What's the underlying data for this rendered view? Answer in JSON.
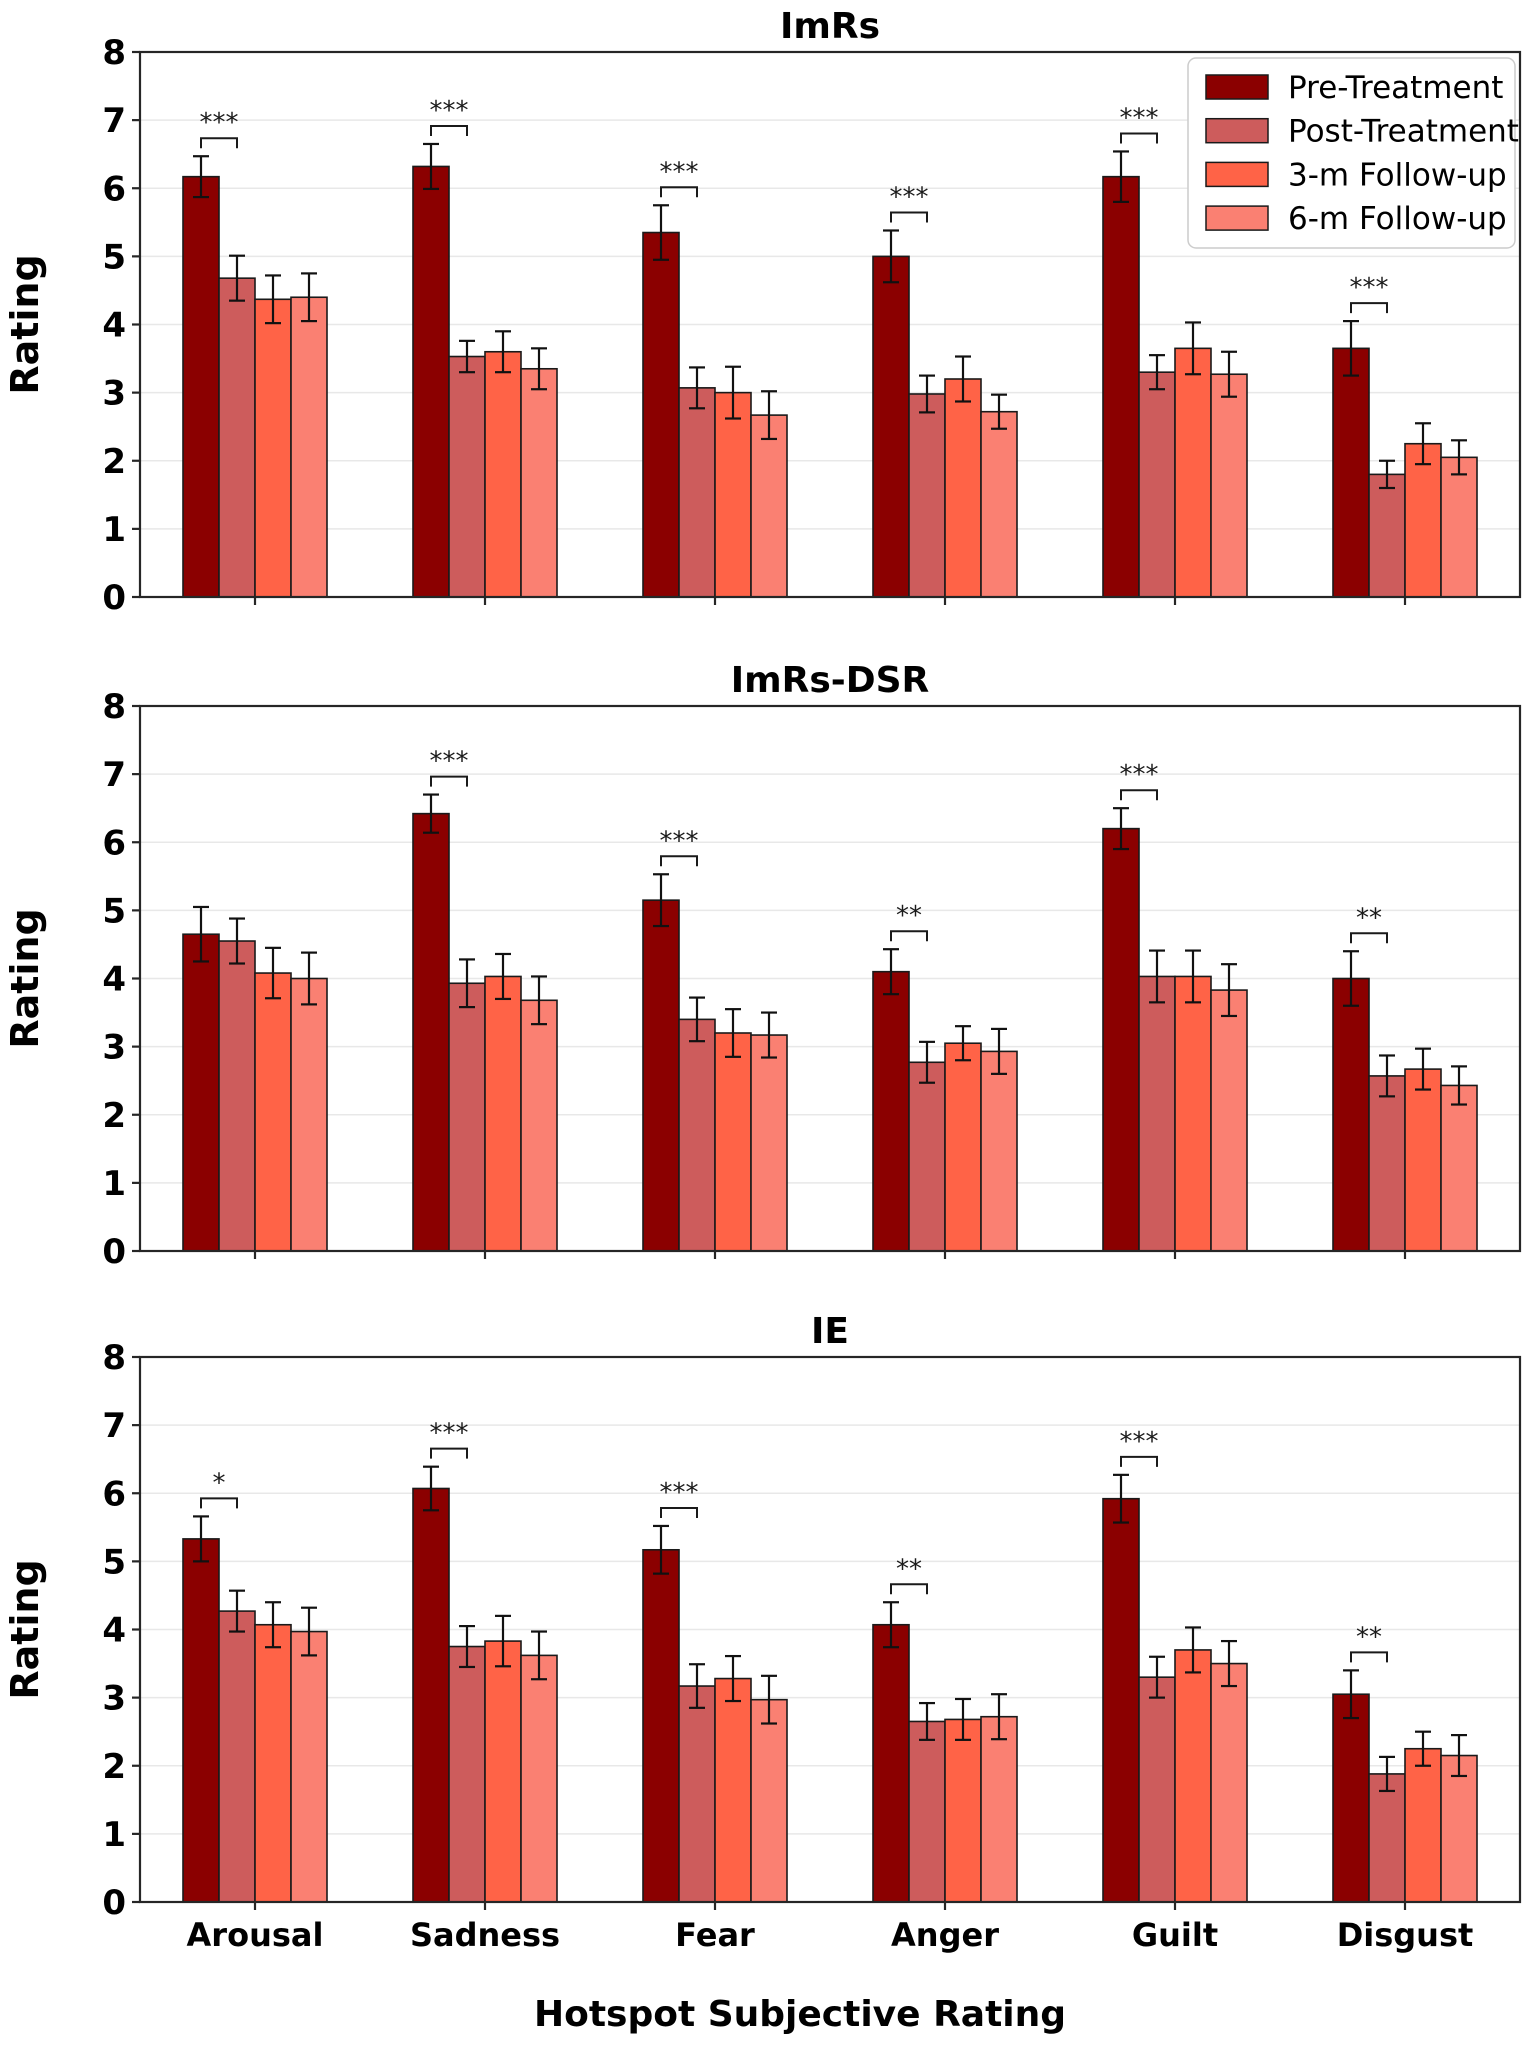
{
  "figure": {
    "xlabel": "Hotspot Subjective Rating",
    "background_color": "#ffffff",
    "spine_color": "#262626",
    "grid_color": "#e8e8e8",
    "errorbar_color": "#111111",
    "legend": {
      "position": "upper right",
      "entries": [
        {
          "label": "Pre-Treatment",
          "color": "#8B0000"
        },
        {
          "label": "Post-Treatment",
          "color": "#CD5C5C"
        },
        {
          "label": "3-m Follow-up",
          "color": "#FF6347"
        },
        {
          "label": "6-m Follow-up",
          "color": "#FA8072"
        }
      ]
    }
  },
  "chart_data": [
    {
      "type": "bar",
      "title": "ImRs",
      "ylabel": "Rating",
      "ylim": [
        0,
        8
      ],
      "yticks": [
        "0",
        "1",
        "2",
        "3",
        "4",
        "5",
        "6",
        "7",
        "8"
      ],
      "grid": true,
      "show_legend": true,
      "show_xtick_labels": false,
      "categories": [
        "Arousal",
        "Sadness",
        "Fear",
        "Anger",
        "Guilt",
        "Disgust"
      ],
      "series": [
        {
          "name": "Pre-Treatment",
          "color": "#8B0000",
          "values": [
            6.17,
            6.32,
            5.35,
            5.0,
            6.17,
            3.65
          ],
          "errors": [
            0.3,
            0.33,
            0.4,
            0.38,
            0.37,
            0.4
          ]
        },
        {
          "name": "Post-Treatment",
          "color": "#CD5C5C",
          "values": [
            4.68,
            3.53,
            3.07,
            2.98,
            3.3,
            1.8
          ],
          "errors": [
            0.33,
            0.23,
            0.3,
            0.27,
            0.25,
            0.2
          ]
        },
        {
          "name": "3-m Follow-up",
          "color": "#FF6347",
          "values": [
            4.37,
            3.6,
            3.0,
            3.2,
            3.65,
            2.25
          ],
          "errors": [
            0.35,
            0.3,
            0.38,
            0.33,
            0.38,
            0.3
          ]
        },
        {
          "name": "6-m Follow-up",
          "color": "#FA8072",
          "values": [
            4.4,
            3.35,
            2.67,
            2.72,
            3.27,
            2.05
          ],
          "errors": [
            0.35,
            0.3,
            0.35,
            0.25,
            0.33,
            0.25
          ]
        }
      ],
      "significance": [
        {
          "category": "Arousal",
          "pair": [
            "Pre-Treatment",
            "Post-Treatment"
          ],
          "label": "***"
        },
        {
          "category": "Sadness",
          "pair": [
            "Pre-Treatment",
            "Post-Treatment"
          ],
          "label": "***"
        },
        {
          "category": "Fear",
          "pair": [
            "Pre-Treatment",
            "Post-Treatment"
          ],
          "label": "***"
        },
        {
          "category": "Anger",
          "pair": [
            "Pre-Treatment",
            "Post-Treatment"
          ],
          "label": "***"
        },
        {
          "category": "Guilt",
          "pair": [
            "Pre-Treatment",
            "Post-Treatment"
          ],
          "label": "***"
        },
        {
          "category": "Disgust",
          "pair": [
            "Pre-Treatment",
            "Post-Treatment"
          ],
          "label": "***"
        }
      ]
    },
    {
      "type": "bar",
      "title": "ImRs-DSR",
      "ylabel": "Rating",
      "ylim": [
        0,
        8
      ],
      "yticks": [
        "0",
        "1",
        "2",
        "3",
        "4",
        "5",
        "6",
        "7",
        "8"
      ],
      "grid": true,
      "show_legend": false,
      "show_xtick_labels": false,
      "categories": [
        "Arousal",
        "Sadness",
        "Fear",
        "Anger",
        "Guilt",
        "Disgust"
      ],
      "series": [
        {
          "name": "Pre-Treatment",
          "color": "#8B0000",
          "values": [
            4.65,
            6.42,
            5.15,
            4.1,
            6.2,
            4.0
          ],
          "errors": [
            0.4,
            0.28,
            0.38,
            0.33,
            0.3,
            0.4
          ]
        },
        {
          "name": "Post-Treatment",
          "color": "#CD5C5C",
          "values": [
            4.55,
            3.93,
            3.4,
            2.77,
            4.03,
            2.57
          ],
          "errors": [
            0.33,
            0.35,
            0.32,
            0.3,
            0.38,
            0.3
          ]
        },
        {
          "name": "3-m Follow-up",
          "color": "#FF6347",
          "values": [
            4.08,
            4.03,
            3.2,
            3.05,
            4.03,
            2.67
          ],
          "errors": [
            0.37,
            0.33,
            0.35,
            0.25,
            0.38,
            0.3
          ]
        },
        {
          "name": "6-m Follow-up",
          "color": "#FA8072",
          "values": [
            4.0,
            3.68,
            3.17,
            2.93,
            3.83,
            2.43
          ],
          "errors": [
            0.38,
            0.35,
            0.33,
            0.33,
            0.38,
            0.28
          ]
        }
      ],
      "significance": [
        {
          "category": "Sadness",
          "pair": [
            "Pre-Treatment",
            "Post-Treatment"
          ],
          "label": "***"
        },
        {
          "category": "Fear",
          "pair": [
            "Pre-Treatment",
            "Post-Treatment"
          ],
          "label": "***"
        },
        {
          "category": "Anger",
          "pair": [
            "Pre-Treatment",
            "Post-Treatment"
          ],
          "label": "**"
        },
        {
          "category": "Guilt",
          "pair": [
            "Pre-Treatment",
            "Post-Treatment"
          ],
          "label": "***"
        },
        {
          "category": "Disgust",
          "pair": [
            "Pre-Treatment",
            "Post-Treatment"
          ],
          "label": "**"
        }
      ]
    },
    {
      "type": "bar",
      "title": "IE",
      "ylabel": "Rating",
      "ylim": [
        0,
        8
      ],
      "yticks": [
        "0",
        "1",
        "2",
        "3",
        "4",
        "5",
        "6",
        "7",
        "8"
      ],
      "grid": true,
      "show_legend": false,
      "show_xtick_labels": true,
      "categories": [
        "Arousal",
        "Sadness",
        "Fear",
        "Anger",
        "Guilt",
        "Disgust"
      ],
      "series": [
        {
          "name": "Pre-Treatment",
          "color": "#8B0000",
          "values": [
            5.33,
            6.07,
            5.17,
            4.07,
            5.92,
            3.05
          ],
          "errors": [
            0.33,
            0.32,
            0.35,
            0.33,
            0.35,
            0.35
          ]
        },
        {
          "name": "Post-Treatment",
          "color": "#CD5C5C",
          "values": [
            4.27,
            3.75,
            3.17,
            2.65,
            3.3,
            1.88
          ],
          "errors": [
            0.3,
            0.3,
            0.32,
            0.27,
            0.3,
            0.25
          ]
        },
        {
          "name": "3-m Follow-up",
          "color": "#FF6347",
          "values": [
            4.07,
            3.83,
            3.28,
            2.68,
            3.7,
            2.25
          ],
          "errors": [
            0.33,
            0.37,
            0.33,
            0.3,
            0.33,
            0.25
          ]
        },
        {
          "name": "6-m Follow-up",
          "color": "#FA8072",
          "values": [
            3.97,
            3.62,
            2.97,
            2.72,
            3.5,
            2.15
          ],
          "errors": [
            0.35,
            0.35,
            0.35,
            0.33,
            0.33,
            0.3
          ]
        }
      ],
      "significance": [
        {
          "category": "Arousal",
          "pair": [
            "Pre-Treatment",
            "Post-Treatment"
          ],
          "label": "*"
        },
        {
          "category": "Sadness",
          "pair": [
            "Pre-Treatment",
            "Post-Treatment"
          ],
          "label": "***"
        },
        {
          "category": "Fear",
          "pair": [
            "Pre-Treatment",
            "Post-Treatment"
          ],
          "label": "***"
        },
        {
          "category": "Anger",
          "pair": [
            "Pre-Treatment",
            "Post-Treatment"
          ],
          "label": "**"
        },
        {
          "category": "Guilt",
          "pair": [
            "Pre-Treatment",
            "Post-Treatment"
          ],
          "label": "***"
        },
        {
          "category": "Disgust",
          "pair": [
            "Pre-Treatment",
            "Post-Treatment"
          ],
          "label": "**"
        }
      ]
    }
  ]
}
